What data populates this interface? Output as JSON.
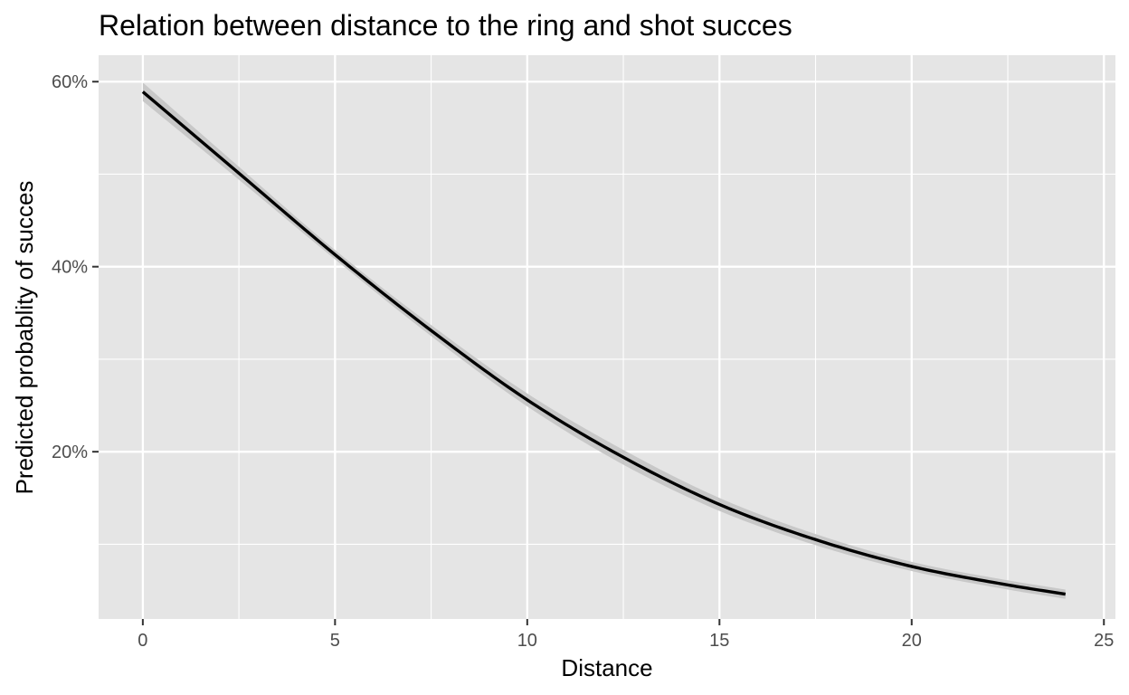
{
  "chart_data": {
    "type": "line",
    "title": "Relation between distance to the ring and shot succes",
    "xlabel": "Distance",
    "ylabel": "Predicted probablity of succes",
    "xlim": [
      -1.15,
      25.3
    ],
    "ylim": [
      0.0192,
      0.6286
    ],
    "x_ticks": [
      0,
      5,
      10,
      15,
      20,
      25
    ],
    "x_tick_labels": [
      "0",
      "5",
      "10",
      "15",
      "20",
      "25"
    ],
    "y_ticks": [
      0.2,
      0.4,
      0.6
    ],
    "y_tick_labels": [
      "20%",
      "40%",
      "60%"
    ],
    "grid": true,
    "legend": "none",
    "colors": {
      "panel_background": "#e5e5e5",
      "grid": "#ffffff",
      "line": "#000000",
      "ribbon": "#c8c8c8",
      "tick_label": "#4d4d4d"
    },
    "series": [
      {
        "x": [
          0,
          2.5,
          5,
          7.5,
          10,
          12.5,
          15,
          17.5,
          20,
          22.5,
          24
        ],
        "y": [
          0.589,
          0.501,
          0.413,
          0.331,
          0.256,
          0.194,
          0.143,
          0.105,
          0.076,
          0.056,
          0.046
        ],
        "lower": [
          0.579,
          0.494,
          0.408,
          0.325,
          0.249,
          0.186,
          0.136,
          0.099,
          0.071,
          0.051,
          0.041
        ],
        "upper": [
          0.599,
          0.508,
          0.418,
          0.337,
          0.263,
          0.202,
          0.15,
          0.111,
          0.081,
          0.061,
          0.051
        ]
      }
    ]
  }
}
